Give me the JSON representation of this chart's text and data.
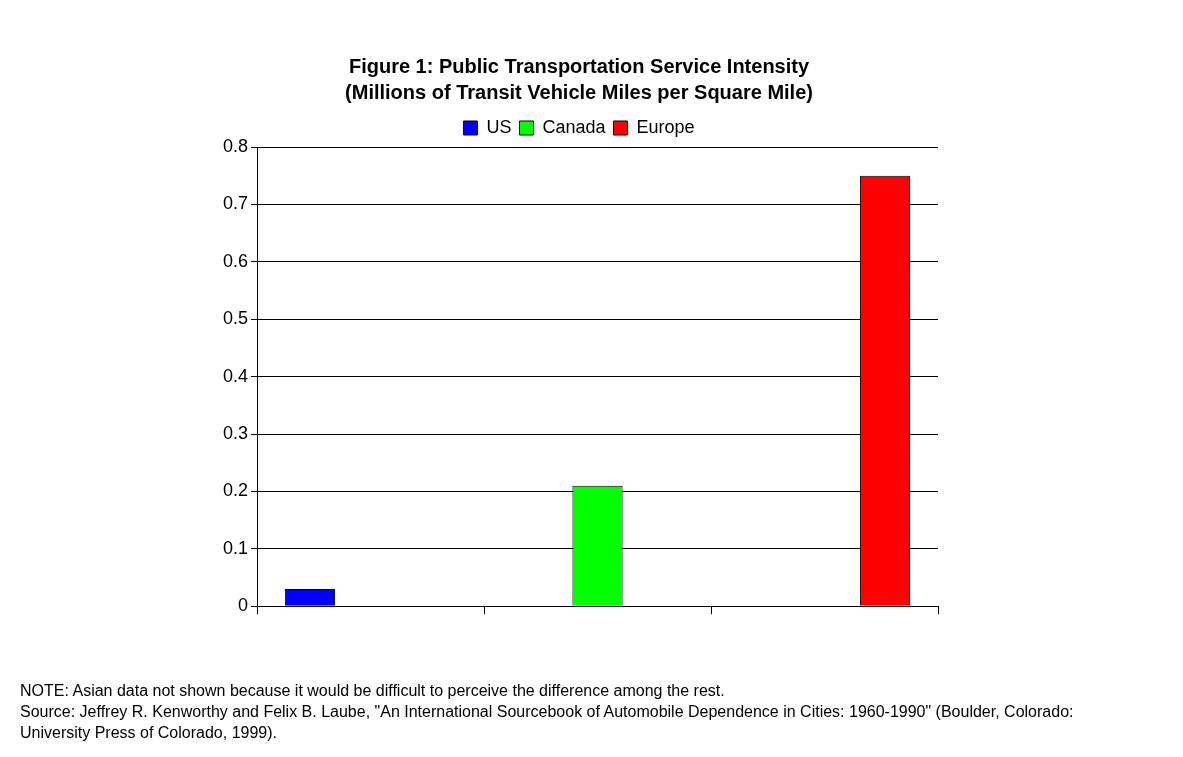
{
  "chart_data": {
    "type": "bar",
    "title": "Figure 1: Public Transportation Service Intensity",
    "subtitle": "(Millions of Transit Vehicle Miles per Square Mile)",
    "categories": [
      null,
      null,
      null
    ],
    "series": [
      {
        "name": "US",
        "color": "#0000ff",
        "values": [
          0.03,
          null,
          null
        ]
      },
      {
        "name": "Canada",
        "color": "#00ff00",
        "values": [
          null,
          0.21,
          null
        ]
      },
      {
        "name": "Europe",
        "color": "#ff0000",
        "values": [
          null,
          null,
          0.75
        ]
      }
    ],
    "ylim": [
      0,
      0.8
    ],
    "yticks": [
      0,
      0.1,
      0.2,
      0.3,
      0.4,
      0.5,
      0.6,
      0.7,
      0.8
    ],
    "grid": "y",
    "legend": "top",
    "annotations": [
      "NOTE: Asian data not shown because it would be difficult to perceive the difference among the rest.",
      "Source: Jeffrey R. Kenworthy and Felix B. Laube, \"An International Sourcebook of Automobile Dependence in Cities: 1960-1990\" (Boulder, Colorado: University Press of Colorado, 1999)."
    ]
  }
}
